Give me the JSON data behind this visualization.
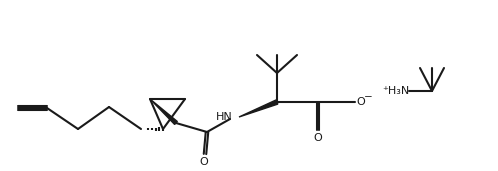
{
  "bg": "#ffffff",
  "lc": "#1a1a1a",
  "lw": 1.5,
  "fs": 7.5,
  "figsize": [
    4.98,
    1.71
  ],
  "dpi": 100,
  "xlim": [
    0,
    498
  ],
  "ylim": [
    0,
    171
  ]
}
